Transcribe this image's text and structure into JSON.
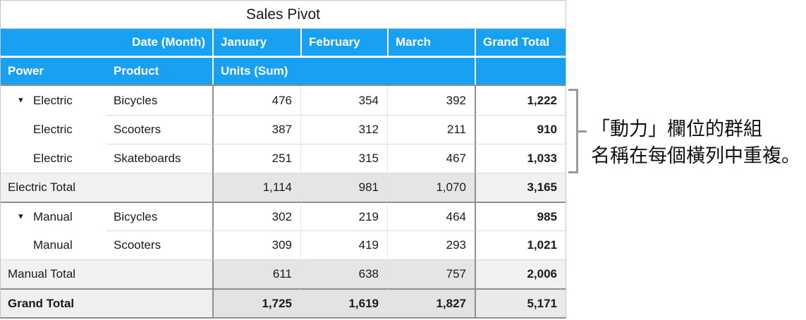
{
  "title": "Sales Pivot",
  "header": {
    "row_field_label": "Date (Month)",
    "columns": [
      "January",
      "February",
      "March",
      "Grand Total"
    ],
    "power_label": "Power",
    "product_label": "Product",
    "values_label": "Units (Sum)"
  },
  "rows": [
    {
      "type": "data",
      "power": "Electric",
      "product": "Bicycles",
      "values": [
        "476",
        "354",
        "392"
      ],
      "total": "1,222"
    },
    {
      "type": "data",
      "power": "Electric",
      "product": "Scooters",
      "values": [
        "387",
        "312",
        "211"
      ],
      "total": "910"
    },
    {
      "type": "data",
      "power": "Electric",
      "product": "Skateboards",
      "values": [
        "251",
        "315",
        "467"
      ],
      "total": "1,033"
    },
    {
      "type": "subtotal",
      "label": "Electric Total",
      "values": [
        "1,114",
        "981",
        "1,070"
      ],
      "total": "3,165"
    },
    {
      "type": "data",
      "power": "Manual",
      "product": "Bicycles",
      "values": [
        "302",
        "219",
        "464"
      ],
      "total": "985"
    },
    {
      "type": "data",
      "power": "Manual",
      "product": "Scooters",
      "values": [
        "309",
        "419",
        "293"
      ],
      "total": "1,021"
    },
    {
      "type": "subtotal",
      "label": "Manual Total",
      "values": [
        "611",
        "638",
        "757"
      ],
      "total": "2,006"
    },
    {
      "type": "grand",
      "label": "Grand Total",
      "values": [
        "1,725",
        "1,619",
        "1,827"
      ],
      "total": "5,171"
    }
  ],
  "annotation": {
    "line1": "「動力」欄位的群組",
    "line2": "名稱在每個橫列中重複。"
  },
  "icons": {
    "disclosure": "▼"
  },
  "colors": {
    "header_blue": "#18A0F3",
    "dark_line": "#8F8F8F",
    "light_line": "#DCDCDC",
    "subtotal_label_bg": "#F1F1F0",
    "subtotal_data_bg": "#E5E5E4",
    "grand_label_bg": "#EFEFEE",
    "grand_data_bg": "#E3E3E2",
    "grand_total_cell_bg": "#EAEAE9",
    "bracket_gray": "#999999"
  }
}
